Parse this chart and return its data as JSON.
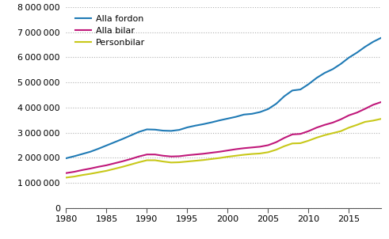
{
  "title": "",
  "years": [
    1980,
    1981,
    1982,
    1983,
    1984,
    1985,
    1986,
    1987,
    1988,
    1989,
    1990,
    1991,
    1992,
    1993,
    1994,
    1995,
    1996,
    1997,
    1998,
    1999,
    2000,
    2001,
    2002,
    2003,
    2004,
    2005,
    2006,
    2007,
    2008,
    2009,
    2010,
    2011,
    2012,
    2013,
    2014,
    2015,
    2016,
    2017,
    2018,
    2019
  ],
  "alla_fordon": [
    1980000,
    2060000,
    2150000,
    2240000,
    2360000,
    2490000,
    2620000,
    2750000,
    2890000,
    3030000,
    3130000,
    3120000,
    3080000,
    3070000,
    3110000,
    3210000,
    3280000,
    3340000,
    3410000,
    3490000,
    3560000,
    3630000,
    3720000,
    3750000,
    3820000,
    3940000,
    4150000,
    4450000,
    4680000,
    4720000,
    4930000,
    5180000,
    5380000,
    5530000,
    5740000,
    5990000,
    6190000,
    6420000,
    6620000,
    6780000
  ],
  "alla_bilar": [
    1390000,
    1440000,
    1510000,
    1570000,
    1640000,
    1700000,
    1780000,
    1860000,
    1950000,
    2050000,
    2130000,
    2130000,
    2080000,
    2050000,
    2060000,
    2100000,
    2130000,
    2160000,
    2200000,
    2240000,
    2290000,
    2340000,
    2380000,
    2410000,
    2440000,
    2500000,
    2620000,
    2790000,
    2930000,
    2950000,
    3060000,
    3200000,
    3310000,
    3400000,
    3530000,
    3690000,
    3800000,
    3950000,
    4110000,
    4220000
  ],
  "personbilar": [
    1210000,
    1250000,
    1310000,
    1360000,
    1420000,
    1480000,
    1560000,
    1640000,
    1730000,
    1820000,
    1900000,
    1900000,
    1850000,
    1810000,
    1820000,
    1850000,
    1880000,
    1910000,
    1950000,
    1990000,
    2040000,
    2080000,
    2120000,
    2150000,
    2170000,
    2220000,
    2320000,
    2460000,
    2570000,
    2580000,
    2680000,
    2800000,
    2900000,
    2980000,
    3060000,
    3200000,
    3310000,
    3430000,
    3480000,
    3550000
  ],
  "line_colors": {
    "alla_fordon": "#1f7ab5",
    "alla_bilar": "#c0187a",
    "personbilar": "#c8c819"
  },
  "legend_labels": [
    "Alla fordon",
    "Alla bilar",
    "Personbilar"
  ],
  "xlim": [
    1980,
    2019
  ],
  "ylim": [
    0,
    8000000
  ],
  "yticks": [
    0,
    1000000,
    2000000,
    3000000,
    4000000,
    5000000,
    6000000,
    7000000,
    8000000
  ],
  "xticks": [
    1980,
    1985,
    1990,
    1995,
    2000,
    2005,
    2010,
    2015
  ],
  "grid_color": "#b0b0b0",
  "background_color": "#ffffff",
  "line_width": 1.5
}
